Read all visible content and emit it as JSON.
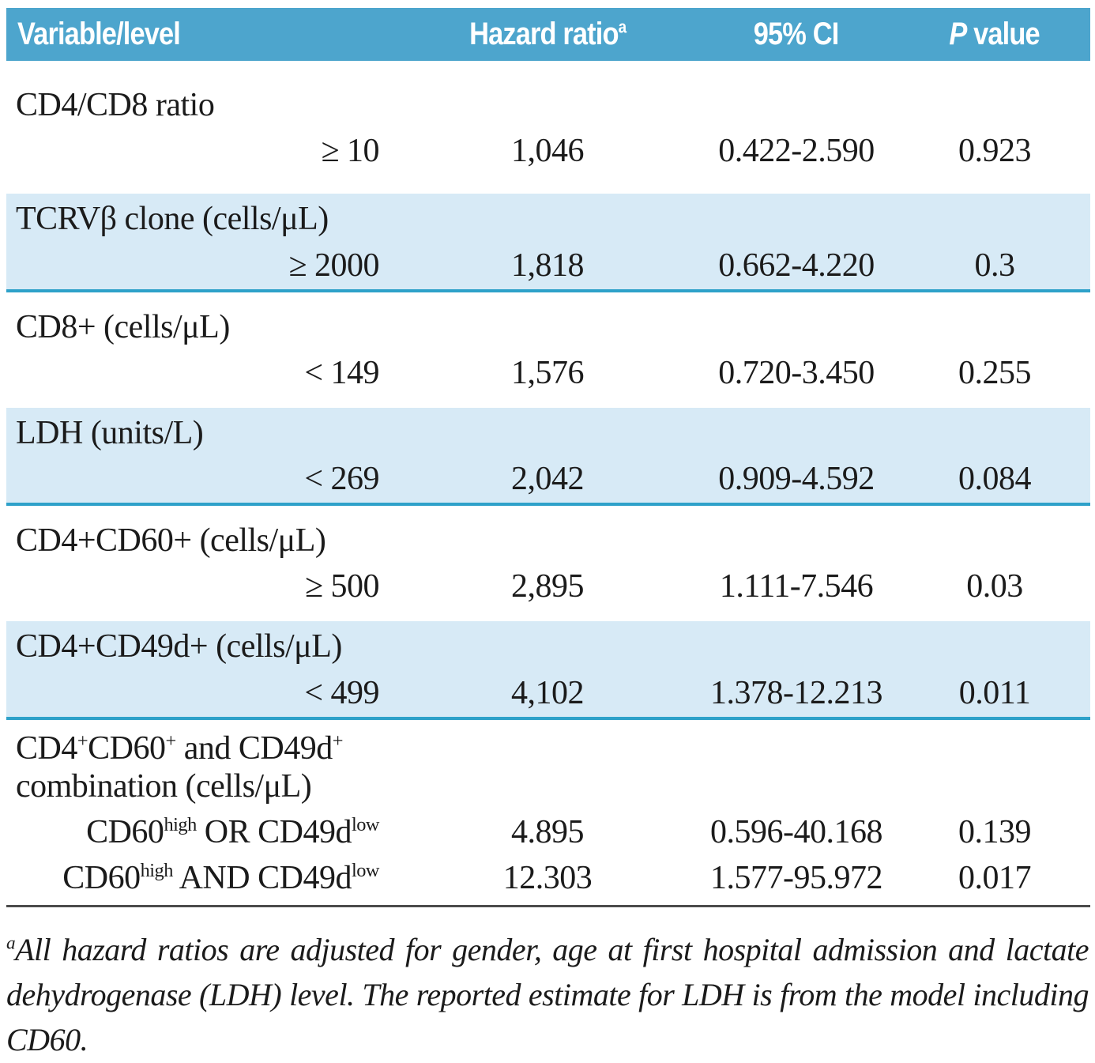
{
  "colors": {
    "header_bg": "#4DA5CD",
    "row_shaded_bg": "#D7EAF6",
    "separator": "#2EA1C9",
    "table_bottom": "#4b4b4b"
  },
  "header": {
    "variable": "Variable/level",
    "hazard_ratio": "Hazard ratio^{a}",
    "ci": "95% CI",
    "p_value": "*P* value"
  },
  "sections": [
    {
      "label": "CD4/CD8 ratio",
      "shaded": false,
      "rows": [
        {
          "level": "≥ 10",
          "hazard_ratio": "1,046",
          "ci": "0.422-2.590",
          "p_value": "0.923"
        }
      ]
    },
    {
      "label": "TCRVβ clone (cells/μL)",
      "shaded": true,
      "rows": [
        {
          "level": "≥ 2000",
          "hazard_ratio": "1,818",
          "ci": "0.662-4.220",
          "p_value": "0.3"
        }
      ]
    },
    {
      "label": "CD8+ (cells/μL)",
      "shaded": false,
      "rows": [
        {
          "level": "< 149",
          "hazard_ratio": "1,576",
          "ci": "0.720-3.450",
          "p_value": "0.255"
        }
      ]
    },
    {
      "label": "LDH (units/L)",
      "shaded": true,
      "rows": [
        {
          "level": "< 269",
          "hazard_ratio": "2,042",
          "ci": "0.909-4.592",
          "p_value": "0.084"
        }
      ]
    },
    {
      "label": "CD4+CD60+ (cells/μL)",
      "shaded": false,
      "rows": [
        {
          "level": "≥ 500",
          "hazard_ratio": "2,895",
          "ci": "1.111-7.546",
          "p_value": "0.03"
        }
      ]
    },
    {
      "label": "CD4+CD49d+ (cells/μL)",
      "shaded": true,
      "rows": [
        {
          "level": "< 499",
          "hazard_ratio": "4,102",
          "ci": "1.378-12.213",
          "p_value": "0.011"
        }
      ]
    },
    {
      "label": "CD4^{+}CD60^{+} and CD49d^{+} combination (cells/μL)",
      "shaded": false,
      "rows": [
        {
          "level": "CD60^{high} OR CD49d^{low}",
          "hazard_ratio": "4.895",
          "ci": "0.596-40.168",
          "p_value": "0.139"
        },
        {
          "level": "CD60^{high} AND CD49d^{low}",
          "hazard_ratio": "12.303",
          "ci": "1.577-95.972",
          "p_value": "0.017"
        }
      ]
    }
  ],
  "footnote": "^{a}All hazard ratios are adjusted for gender, age at first hospital admission and lactate dehydrogenase (LDH) level. The reported estimate for LDH is from the model including CD60."
}
